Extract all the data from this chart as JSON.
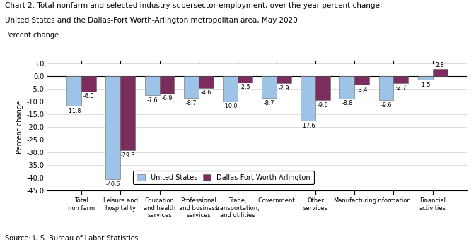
{
  "title_line1": "Chart 2. Total nonfarm and selected industry supersector employment, over-the-year percent change,",
  "title_line2": "United States and the Dallas-Fort Worth-Arlington metropolitan area, May 2020",
  "ylabel": "Percent change",
  "source": "Source: U.S. Bureau of Labor Statistics.",
  "categories": [
    "Total\nnon farm",
    "Leisure and\nhospitality",
    "Education\nand health\nservices",
    "Professional\nand business\nservices",
    "Trade,\ntransportation,\nand utilities",
    "Government",
    "Other\nservices",
    "Manufacturing",
    "Information",
    "Financial\nactivities"
  ],
  "us_values": [
    -11.8,
    -40.6,
    -7.6,
    -8.7,
    -10.0,
    -8.7,
    -17.6,
    -8.8,
    -9.6,
    -1.5
  ],
  "dfw_values": [
    -6.0,
    -29.3,
    -6.9,
    -4.6,
    -2.5,
    -2.9,
    -9.6,
    -3.4,
    -2.7,
    2.8
  ],
  "us_color": "#9dc3e6",
  "dfw_color": "#7b2d5e",
  "ylim": [
    -45,
    5
  ],
  "yticks": [
    5.0,
    0.0,
    -5.0,
    -10.0,
    -15.0,
    -20.0,
    -25.0,
    -30.0,
    -35.0,
    -40.0,
    -45.0
  ],
  "ytick_labels": [
    "5.0",
    "0.0",
    "-5.0",
    "-10.0",
    "-15.0",
    "-20.0",
    "-25.0",
    "-30.0",
    "-35.0",
    "-40.0",
    "-45.0"
  ],
  "legend_us": "United States",
  "legend_dfw": "Dallas-Fort Worth-Arlington",
  "bar_width": 0.38
}
